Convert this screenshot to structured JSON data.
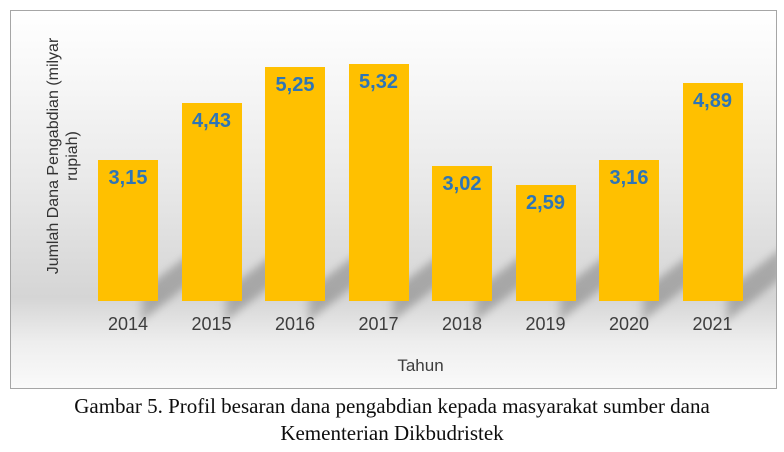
{
  "figure": {
    "caption_line1": "Gambar 5. Profil besaran dana pengabdian kepada masyarakat sumber dana",
    "caption_line2": "Kementerian Dikbudristek"
  },
  "chart_data": {
    "type": "bar",
    "title": "",
    "categories": [
      "2014",
      "2015",
      "2016",
      "2017",
      "2018",
      "2019",
      "2020",
      "2021"
    ],
    "values": [
      3.15,
      4.43,
      5.25,
      5.32,
      3.02,
      2.59,
      3.16,
      4.89
    ],
    "value_labels": [
      "3,15",
      "4,43",
      "5,25",
      "5,32",
      "3,02",
      "2,59",
      "3,16",
      "4,89"
    ],
    "xlabel": "Tahun",
    "ylabel": "Jumlah Dana Pengabdian (milyar rupiah)",
    "ylabel_lines": [
      "Jumlah Dana Pengabdian (milyar",
      "rupiah)"
    ],
    "ylim": [
      0,
      6.5
    ],
    "grid": false,
    "legend": "none",
    "bar_color": "#FFC000",
    "value_label_color": "#2E75B6",
    "axis_text_color": "#3d3d3d",
    "frame_border_color": "#a6a6a6"
  }
}
